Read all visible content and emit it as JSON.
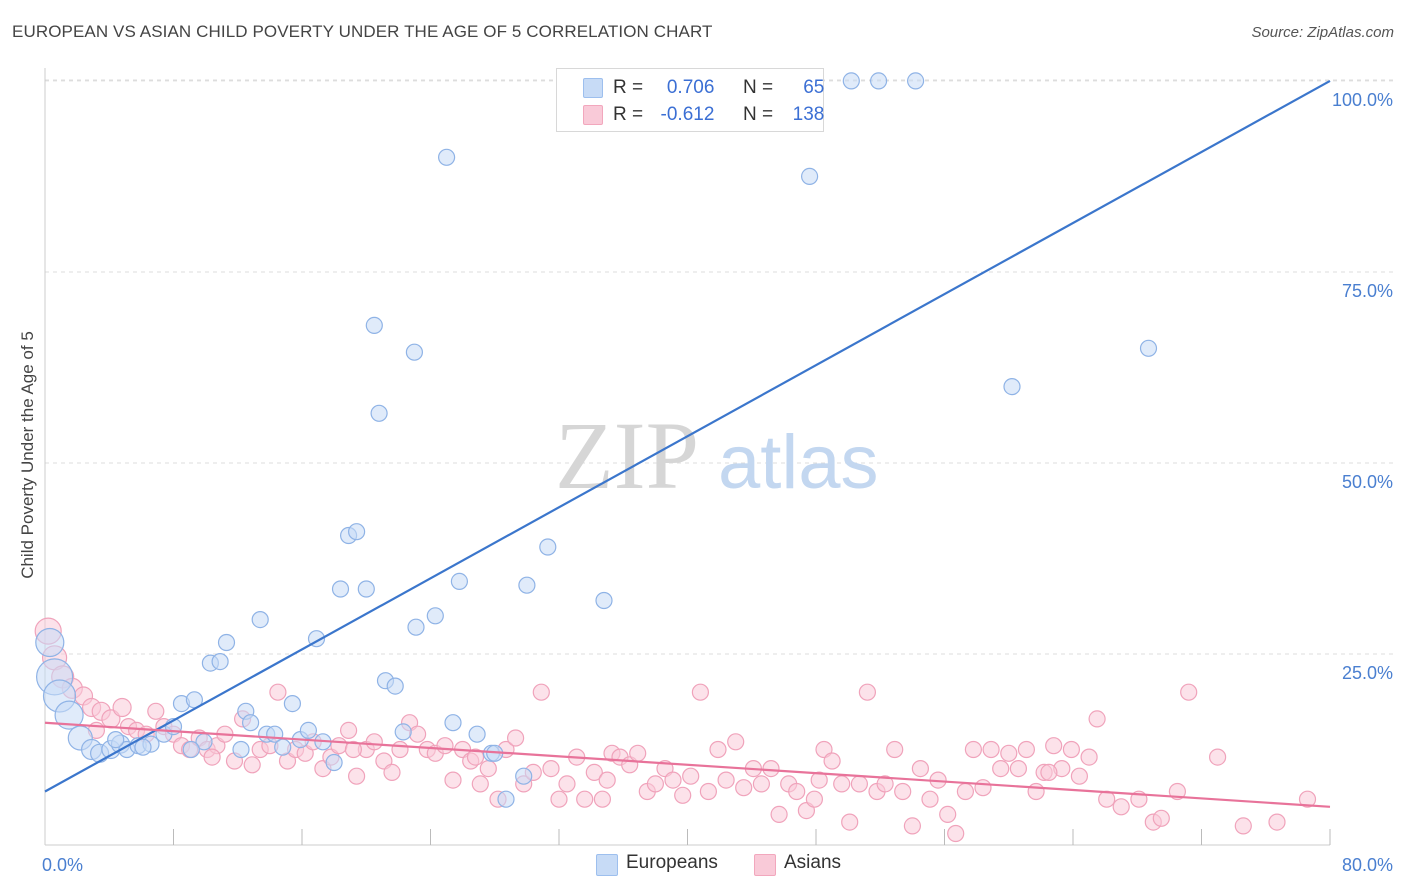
{
  "title": "EUROPEAN VS ASIAN CHILD POVERTY UNDER THE AGE OF 5 CORRELATION CHART",
  "source": "Source: ZipAtlas.com",
  "watermark": {
    "zip": "ZIP",
    "atlas": "atlas"
  },
  "legend": {
    "r_label": "R =",
    "n_label": "N =",
    "rows": [
      {
        "r": "0.706",
        "n": "65",
        "color": "#9dbfee",
        "fill": "#c7dbf6"
      },
      {
        "r": "-0.612",
        "n": "138",
        "color": "#f2a7bd",
        "fill": "#f9cad8"
      }
    ]
  },
  "bottom_legend": [
    {
      "label": "Europeans",
      "color": "#9dbfee",
      "fill": "#c7dbf6"
    },
    {
      "label": "Asians",
      "color": "#f2a7bd",
      "fill": "#f9cad8"
    }
  ],
  "chart_data": {
    "type": "scatter",
    "ylabel": "Child Poverty Under the Age of 5",
    "xlabel": "",
    "xlim": [
      0,
      80
    ],
    "ylim": [
      0,
      103
    ],
    "x_tick_labels": [
      {
        "value": 0,
        "label": "0.0%"
      },
      {
        "value": 80,
        "label": "80.0%"
      }
    ],
    "y_tick_labels": [
      {
        "value": 25,
        "label": "25.0%"
      },
      {
        "value": 50,
        "label": "50.0%"
      },
      {
        "value": 75,
        "label": "75.0%"
      },
      {
        "value": 100,
        "label": "100.0%"
      }
    ],
    "x_minor_ticks": [
      8,
      16,
      24,
      32,
      40,
      48,
      56,
      64,
      72
    ],
    "series": [
      {
        "name": "Europeans",
        "color": "#5b8fd9",
        "fill": "#c7dbf6",
        "stroke": "#8fb3e6",
        "trendline": {
          "x": [
            0,
            80
          ],
          "y": [
            7,
            100
          ],
          "color": "#3b76cc"
        },
        "points": [
          [
            0.3,
            26.5,
            14
          ],
          [
            0.6,
            22,
            18
          ],
          [
            0.9,
            19.5,
            16
          ],
          [
            1.5,
            17,
            14
          ],
          [
            2.2,
            14,
            12
          ],
          [
            2.9,
            12.5,
            10
          ],
          [
            3.4,
            12,
            9
          ],
          [
            4.1,
            12.5,
            9
          ],
          [
            4.7,
            13.2,
            9
          ],
          [
            5.1,
            12.5,
            8
          ],
          [
            5.8,
            13,
            8
          ],
          [
            6.6,
            13.2,
            8
          ],
          [
            7.4,
            14.5,
            8
          ],
          [
            8.0,
            15.5,
            8
          ],
          [
            8.5,
            18.5,
            8
          ],
          [
            9.3,
            19,
            8
          ],
          [
            9.9,
            13.5,
            8
          ],
          [
            10.3,
            23.8,
            8
          ],
          [
            10.9,
            24,
            8
          ],
          [
            11.3,
            26.5,
            8
          ],
          [
            12.2,
            12.5,
            8
          ],
          [
            12.5,
            17.5,
            8
          ],
          [
            12.8,
            16,
            8
          ],
          [
            13.4,
            29.5,
            8
          ],
          [
            13.8,
            14.5,
            8
          ],
          [
            14.3,
            14.5,
            8
          ],
          [
            14.8,
            12.8,
            8
          ],
          [
            15.4,
            18.5,
            8
          ],
          [
            15.9,
            13.8,
            8
          ],
          [
            16.4,
            15,
            8
          ],
          [
            16.9,
            27,
            8
          ],
          [
            17.3,
            13.5,
            8
          ],
          [
            18.0,
            10.8,
            8
          ],
          [
            18.4,
            33.5,
            8
          ],
          [
            18.9,
            40.5,
            8
          ],
          [
            19.4,
            41,
            8
          ],
          [
            20.0,
            33.5,
            8
          ],
          [
            20.5,
            68,
            8
          ],
          [
            20.8,
            56.5,
            8
          ],
          [
            21.2,
            21.5,
            8
          ],
          [
            21.8,
            20.8,
            8
          ],
          [
            22.3,
            14.8,
            8
          ],
          [
            23.0,
            64.5,
            8
          ],
          [
            23.1,
            28.5,
            8
          ],
          [
            24.3,
            30,
            8
          ],
          [
            25.0,
            90,
            8
          ],
          [
            25.4,
            16,
            8
          ],
          [
            25.8,
            34.5,
            8
          ],
          [
            26.9,
            14.5,
            8
          ],
          [
            27.8,
            12,
            8
          ],
          [
            28.0,
            12,
            8
          ],
          [
            28.7,
            6,
            8
          ],
          [
            29.8,
            9,
            8
          ],
          [
            30.0,
            34,
            8
          ],
          [
            31.3,
            39,
            8
          ],
          [
            34.8,
            32,
            8
          ],
          [
            47.6,
            87.5,
            8
          ],
          [
            50.2,
            100,
            8
          ],
          [
            51.9,
            100,
            8
          ],
          [
            54.2,
            100,
            8
          ],
          [
            60.2,
            60,
            8
          ],
          [
            68.7,
            65,
            8
          ],
          [
            4.4,
            13.8,
            8
          ],
          [
            6.1,
            12.8,
            8
          ],
          [
            9.1,
            12.5,
            8
          ]
        ]
      },
      {
        "name": "Asians",
        "color": "#e8739a",
        "fill": "#f9cad8",
        "stroke": "#f0a3bb",
        "trendline": {
          "x": [
            0,
            80
          ],
          "y": [
            16,
            5
          ],
          "color": "#e8739a"
        },
        "points": [
          [
            0.2,
            28,
            13
          ],
          [
            0.6,
            24.5,
            12
          ],
          [
            1.1,
            22,
            11
          ],
          [
            1.7,
            20.5,
            10
          ],
          [
            2.4,
            19.5,
            9
          ],
          [
            2.9,
            18,
            9
          ],
          [
            3.5,
            17.5,
            9
          ],
          [
            4.1,
            16.5,
            9
          ],
          [
            4.8,
            18,
            9
          ],
          [
            5.2,
            15.5,
            8
          ],
          [
            5.7,
            15,
            8
          ],
          [
            6.3,
            14.5,
            8
          ],
          [
            6.9,
            17.5,
            8
          ],
          [
            7.4,
            15.5,
            8
          ],
          [
            8.0,
            14.5,
            8
          ],
          [
            8.5,
            13,
            8
          ],
          [
            9.0,
            12.5,
            8
          ],
          [
            9.6,
            14,
            8
          ],
          [
            10.1,
            12.5,
            8
          ],
          [
            10.7,
            13,
            8
          ],
          [
            11.2,
            14.5,
            8
          ],
          [
            11.8,
            11,
            8
          ],
          [
            12.3,
            16.5,
            8
          ],
          [
            12.9,
            10.5,
            8
          ],
          [
            13.4,
            12.5,
            8
          ],
          [
            14.0,
            13,
            8
          ],
          [
            14.5,
            20,
            8
          ],
          [
            15.1,
            11,
            8
          ],
          [
            15.6,
            12.5,
            8
          ],
          [
            16.2,
            12,
            8
          ],
          [
            16.7,
            13.5,
            8
          ],
          [
            17.3,
            10,
            8
          ],
          [
            17.8,
            11.5,
            8
          ],
          [
            18.3,
            13,
            8
          ],
          [
            18.9,
            15,
            8
          ],
          [
            19.4,
            9,
            8
          ],
          [
            20.0,
            12.5,
            8
          ],
          [
            20.5,
            13.5,
            8
          ],
          [
            21.1,
            11,
            8
          ],
          [
            21.6,
            9.5,
            8
          ],
          [
            22.1,
            12.5,
            8
          ],
          [
            22.7,
            16,
            8
          ],
          [
            23.2,
            14.5,
            8
          ],
          [
            23.8,
            12.5,
            8
          ],
          [
            24.3,
            12,
            8
          ],
          [
            24.9,
            13,
            8
          ],
          [
            25.4,
            8.5,
            8
          ],
          [
            26.0,
            12.5,
            8
          ],
          [
            26.5,
            11,
            8
          ],
          [
            27.1,
            8,
            8
          ],
          [
            27.6,
            10,
            8
          ],
          [
            28.2,
            6,
            8
          ],
          [
            28.7,
            12.5,
            8
          ],
          [
            29.3,
            14,
            8
          ],
          [
            29.8,
            8,
            8
          ],
          [
            30.4,
            9.5,
            8
          ],
          [
            30.9,
            20,
            8
          ],
          [
            31.5,
            10,
            8
          ],
          [
            32.0,
            6,
            8
          ],
          [
            32.5,
            8,
            8
          ],
          [
            33.1,
            11.5,
            8
          ],
          [
            33.6,
            6,
            8
          ],
          [
            34.2,
            9.5,
            8
          ],
          [
            34.7,
            6,
            8
          ],
          [
            35.3,
            12,
            8
          ],
          [
            35.8,
            11.5,
            8
          ],
          [
            36.4,
            10.5,
            8
          ],
          [
            36.9,
            12,
            8
          ],
          [
            37.5,
            7,
            8
          ],
          [
            38.0,
            8,
            8
          ],
          [
            38.6,
            10,
            8
          ],
          [
            39.1,
            8.5,
            8
          ],
          [
            39.7,
            6.5,
            8
          ],
          [
            40.2,
            9,
            8
          ],
          [
            40.8,
            20,
            8
          ],
          [
            41.3,
            7,
            8
          ],
          [
            41.9,
            12.5,
            8
          ],
          [
            42.4,
            8.5,
            8
          ],
          [
            43.0,
            13.5,
            8
          ],
          [
            43.5,
            7.5,
            8
          ],
          [
            44.1,
            10,
            8
          ],
          [
            44.6,
            8,
            8
          ],
          [
            45.2,
            10,
            8
          ],
          [
            45.7,
            4,
            8
          ],
          [
            46.3,
            8,
            8
          ],
          [
            46.8,
            7,
            8
          ],
          [
            47.4,
            4.5,
            8
          ],
          [
            47.9,
            6,
            8
          ],
          [
            48.5,
            12.5,
            8
          ],
          [
            49.0,
            11,
            8
          ],
          [
            49.6,
            8,
            8
          ],
          [
            50.1,
            3,
            8
          ],
          [
            50.7,
            8,
            8
          ],
          [
            51.2,
            20,
            8
          ],
          [
            51.8,
            7,
            8
          ],
          [
            52.3,
            8,
            8
          ],
          [
            52.9,
            12.5,
            8
          ],
          [
            53.4,
            7,
            8
          ],
          [
            54.0,
            2.5,
            8
          ],
          [
            54.5,
            10,
            8
          ],
          [
            55.1,
            6,
            8
          ],
          [
            55.6,
            8.5,
            8
          ],
          [
            56.2,
            4,
            8
          ],
          [
            56.7,
            1.5,
            8
          ],
          [
            57.3,
            7,
            8
          ],
          [
            57.8,
            12.5,
            8
          ],
          [
            58.4,
            7.5,
            8
          ],
          [
            58.9,
            12.5,
            8
          ],
          [
            59.5,
            10,
            8
          ],
          [
            60.0,
            12,
            8
          ],
          [
            60.6,
            10,
            8
          ],
          [
            61.1,
            12.5,
            8
          ],
          [
            61.7,
            7,
            8
          ],
          [
            62.2,
            9.5,
            8
          ],
          [
            62.8,
            13,
            8
          ],
          [
            63.3,
            10,
            8
          ],
          [
            63.9,
            12.5,
            8
          ],
          [
            64.4,
            9,
            8
          ],
          [
            65.0,
            11.5,
            8
          ],
          [
            65.5,
            16.5,
            8
          ],
          [
            66.1,
            6,
            8
          ],
          [
            67.0,
            5,
            8
          ],
          [
            68.1,
            6,
            8
          ],
          [
            69.0,
            3,
            8
          ],
          [
            69.5,
            3.5,
            8
          ],
          [
            70.5,
            7,
            8
          ],
          [
            71.2,
            20,
            8
          ],
          [
            74.6,
            2.5,
            8
          ],
          [
            76.7,
            3,
            8
          ],
          [
            78.6,
            6,
            8
          ],
          [
            3.2,
            15,
            8
          ],
          [
            10.4,
            11.5,
            8
          ],
          [
            19.2,
            12.5,
            8
          ],
          [
            26.8,
            11.5,
            8
          ],
          [
            35.0,
            8.5,
            8
          ],
          [
            48.2,
            8.5,
            8
          ],
          [
            62.5,
            9.5,
            8
          ],
          [
            73.0,
            11.5,
            8
          ]
        ]
      }
    ]
  }
}
